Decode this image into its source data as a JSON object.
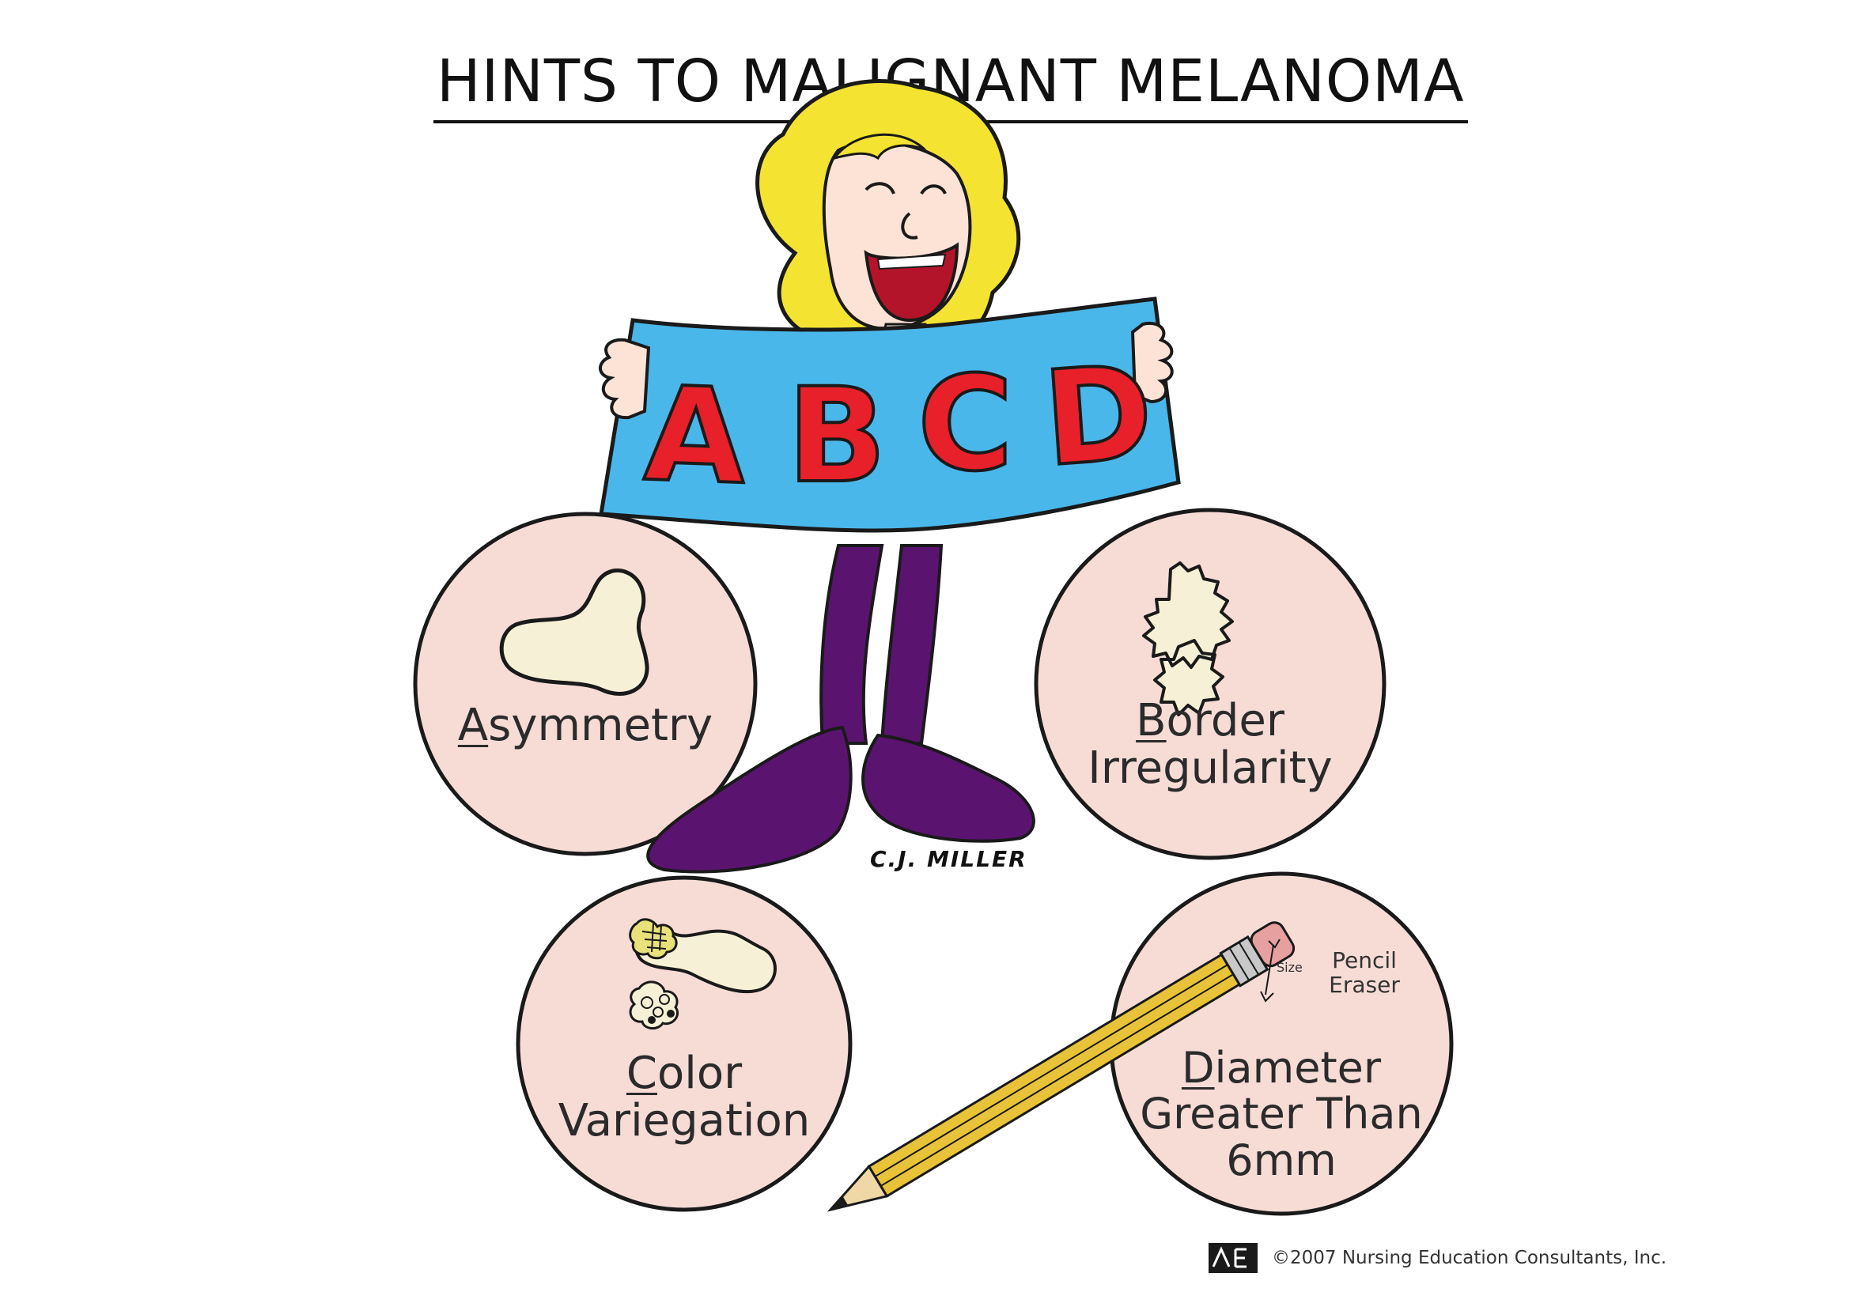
{
  "title": "HINTS TO MALIGNANT MELANOMA",
  "banner": {
    "letters": [
      "A",
      "B",
      "C",
      "D"
    ],
    "colors": {
      "banner": "#4ab7ea",
      "letter_fill": "#e8202a",
      "letter_stroke": "#1a1a1a"
    }
  },
  "circles": [
    {
      "first": "A",
      "rest": "symmetry"
    },
    {
      "first": "B",
      "rest": "order",
      "line2": "Irregularity"
    },
    {
      "first": "C",
      "rest": "olor",
      "line2": "Variegation"
    },
    {
      "first": "D",
      "rest": "iameter",
      "line2": "Greater Than",
      "line3": "6mm"
    }
  ],
  "pencil_note": {
    "size": "Size",
    "line1": "Pencil",
    "line2": "Eraser"
  },
  "signature": "C.J. MILLER",
  "copyright": "©2007 Nursing Education Consultants, Inc.",
  "colors": {
    "circle_fill": "#f7dcd6",
    "hair": "#f4e431",
    "legs": "#5a1470",
    "skin": "#fde3d6",
    "lesion": "#f6f1d6",
    "pencil_body": "#e8c33a",
    "eraser": "#e7a0a0"
  }
}
